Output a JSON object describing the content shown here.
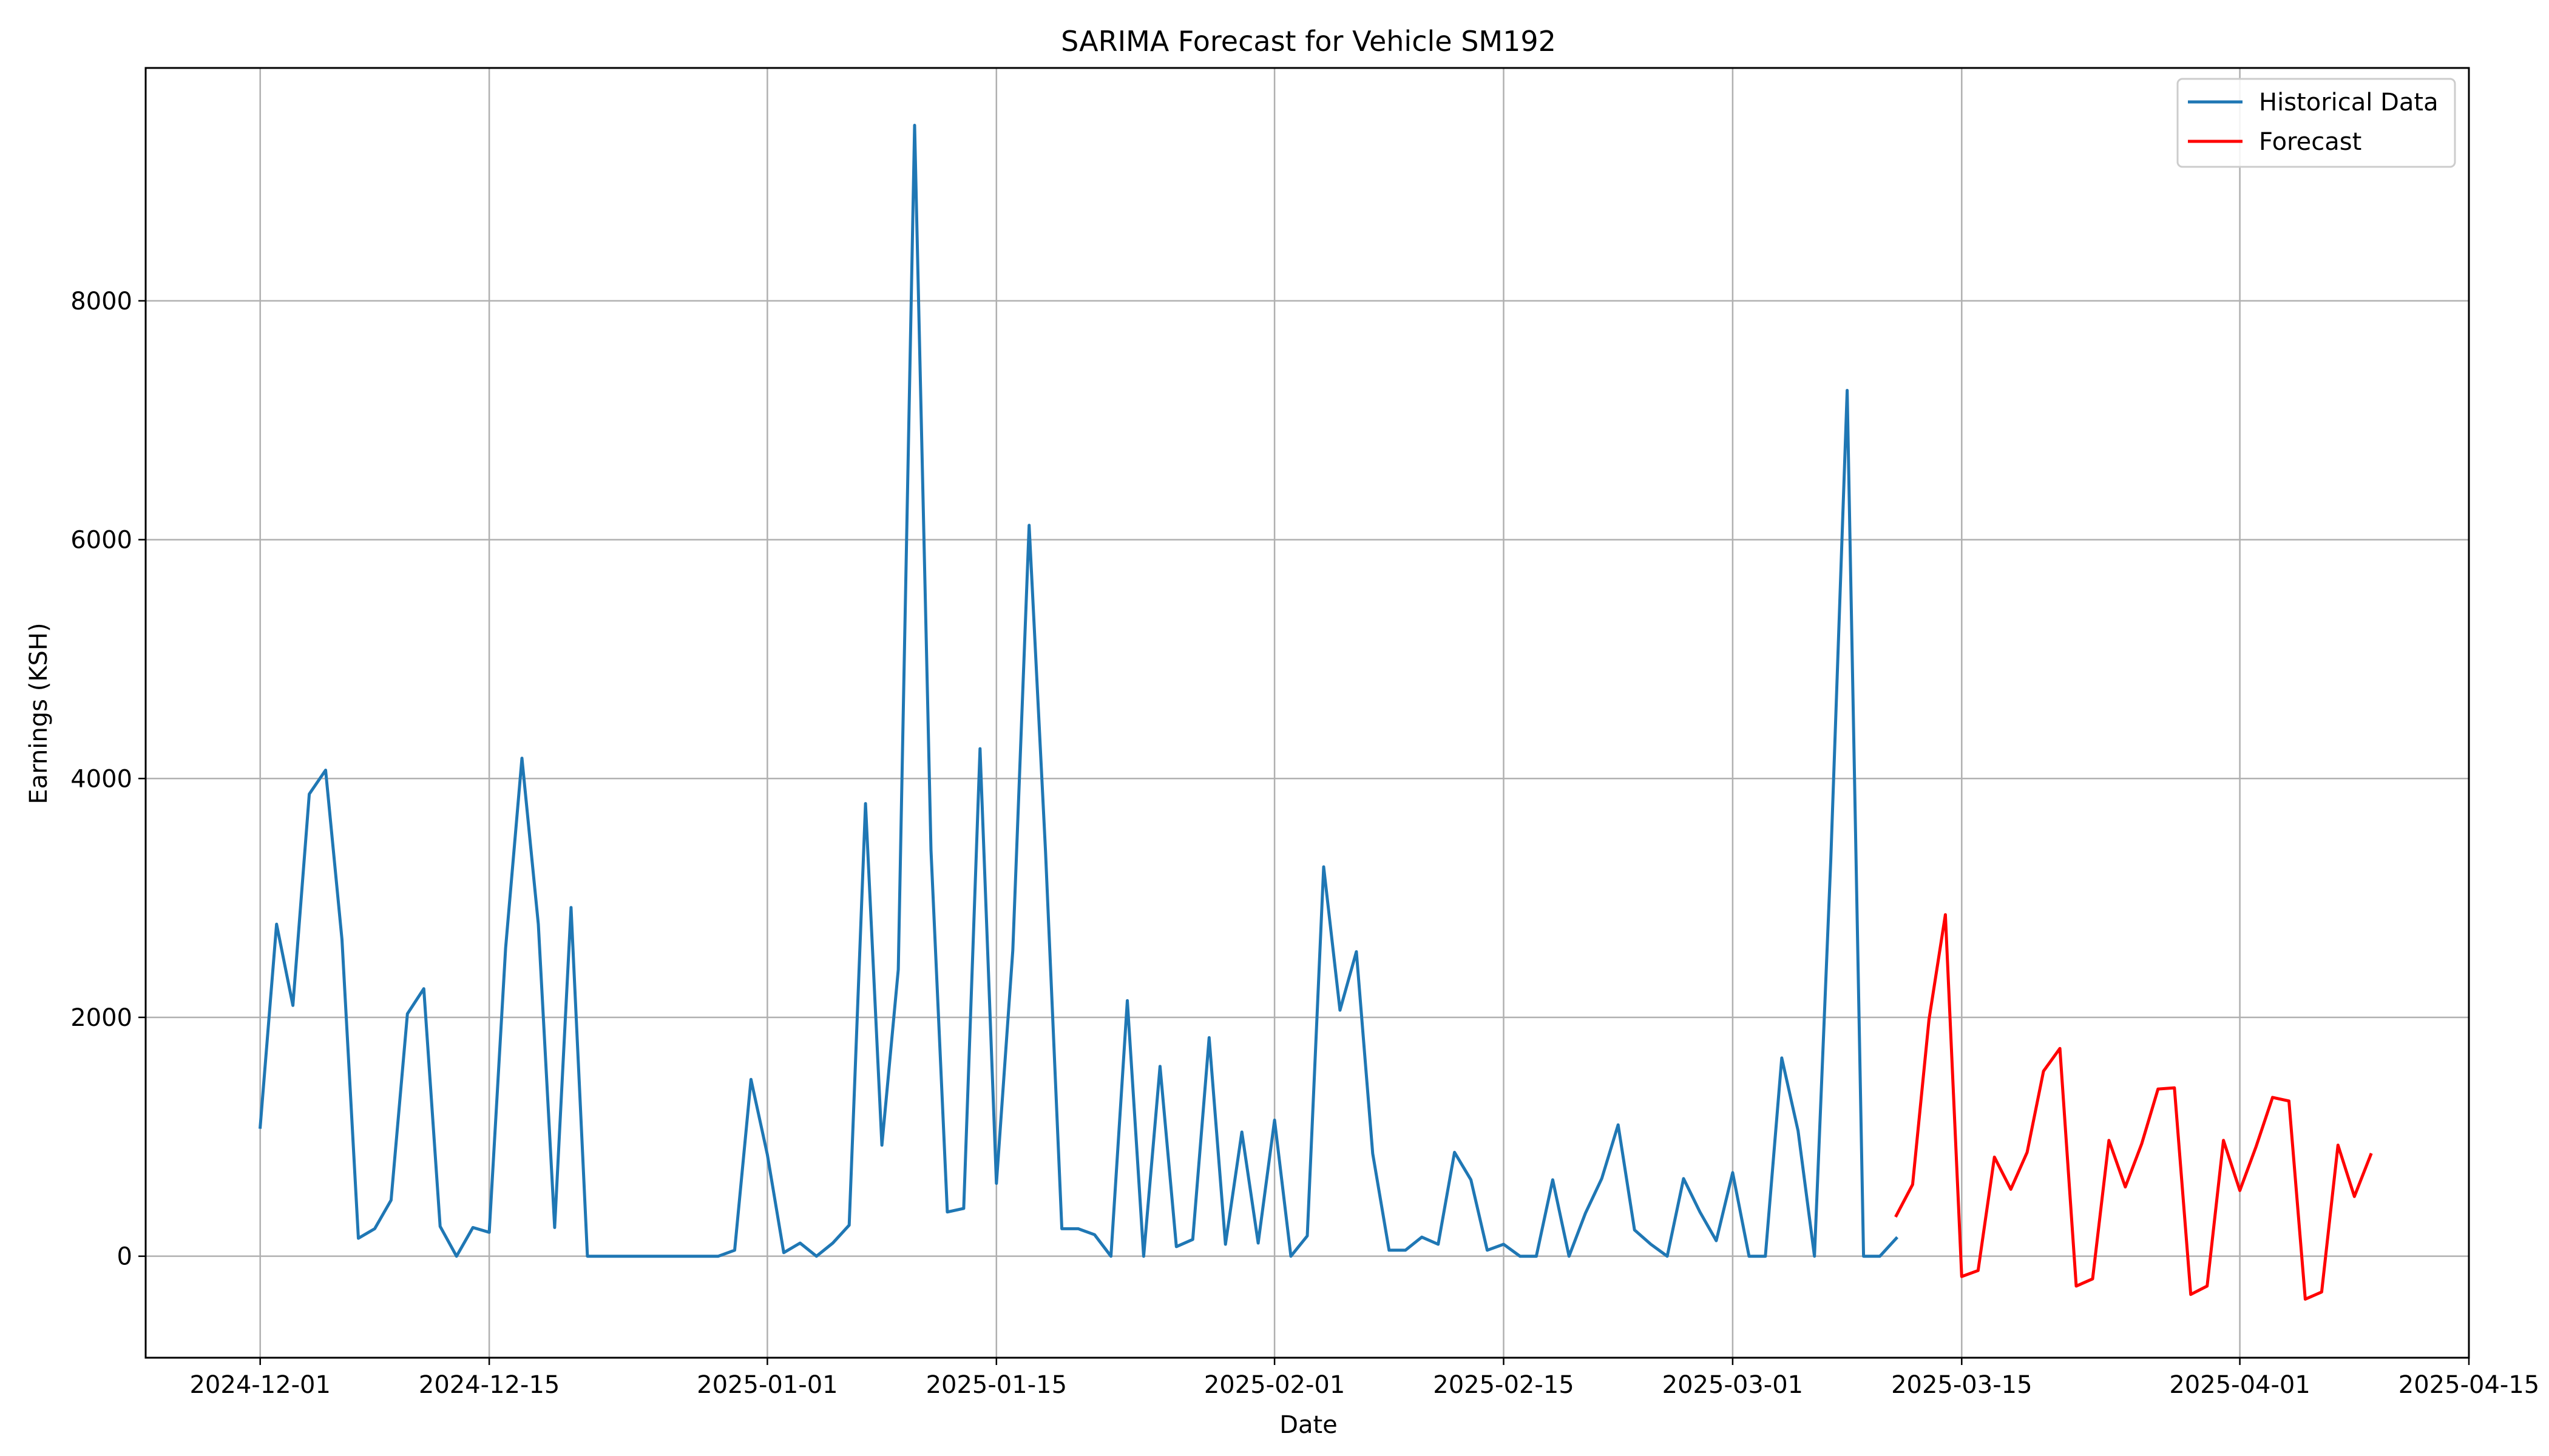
{
  "chart_data": {
    "type": "line",
    "title": "SARIMA Forecast for Vehicle SM192",
    "xlabel": "Date",
    "ylabel": "Earnings (KSH)",
    "x_ticks": [
      "2024-12-01",
      "2024-12-15",
      "2025-01-01",
      "2025-01-15",
      "2025-02-01",
      "2025-02-15",
      "2025-03-01",
      "2025-03-15",
      "2025-04-01",
      "2025-04-15"
    ],
    "y_ticks": [
      0,
      2000,
      4000,
      6000,
      8000
    ],
    "xlim": [
      "2024-11-24",
      "2025-04-15"
    ],
    "ylim": [
      -850,
      9950
    ],
    "grid": true,
    "legend_position": "top-right",
    "series": [
      {
        "name": "Historical Data",
        "color": "#1f77b4",
        "start_date": "2024-12-01",
        "values": [
          1080,
          2780,
          2100,
          3870,
          4070,
          2650,
          150,
          230,
          470,
          2030,
          2240,
          250,
          0,
          240,
          200,
          2580,
          4170,
          2780,
          240,
          2920,
          0,
          0,
          0,
          0,
          0,
          0,
          0,
          0,
          0,
          50,
          1480,
          850,
          30,
          110,
          0,
          110,
          260,
          3790,
          930,
          2400,
          9470,
          3400,
          370,
          400,
          4250,
          610,
          2560,
          6120,
          3390,
          230,
          230,
          180,
          0,
          2140,
          0,
          1590,
          80,
          140,
          1830,
          100,
          1040,
          110,
          1140,
          0,
          170,
          3260,
          2060,
          2550,
          860,
          50,
          50,
          160,
          100,
          870,
          640,
          50,
          100,
          0,
          0,
          640,
          0,
          360,
          650,
          1100,
          220,
          100,
          0,
          650,
          370,
          130,
          700,
          0,
          0,
          1660,
          1050,
          0,
          3320,
          7250,
          0,
          0,
          150
        ]
      },
      {
        "name": "Forecast",
        "color": "#ff0000",
        "start_date": "2025-03-11",
        "values": [
          340,
          600,
          1980,
          2860,
          -170,
          -120,
          830,
          560,
          870,
          1550,
          1740,
          -250,
          -190,
          970,
          580,
          940,
          1400,
          1410,
          -320,
          -250,
          970,
          550,
          920,
          1330,
          1300,
          -360,
          -300,
          930,
          500,
          850
        ]
      }
    ]
  }
}
